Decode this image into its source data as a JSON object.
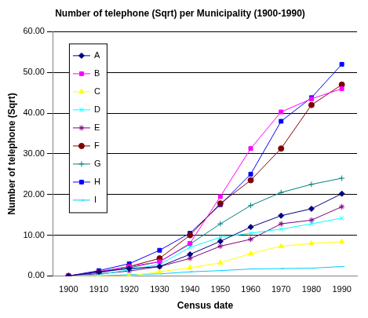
{
  "chart_data": {
    "type": "line",
    "title": "Number of telephone (Sqrt) per Municipality (1900-1990)",
    "x_label": "Census date",
    "y_label": "Number of telephone (Sqrt)",
    "categories": [
      "1900",
      "1910",
      "1920",
      "1930",
      "1940",
      "1950",
      "1960",
      "1970",
      "1980",
      "1990"
    ],
    "series": [
      {
        "name": "A",
        "color": "#000080",
        "marker": "diamond",
        "values": [
          0,
          1.0,
          1.8,
          2.3,
          5.3,
          8.5,
          12.0,
          14.8,
          16.5,
          20.2
        ]
      },
      {
        "name": "B",
        "color": "#ff00ff",
        "marker": "square",
        "values": [
          0,
          1.0,
          2.3,
          3.5,
          8.0,
          19.5,
          31.3,
          40.3,
          43.5,
          46.0
        ]
      },
      {
        "name": "C",
        "color": "#ffff00",
        "marker": "triangle",
        "values": [
          0,
          0,
          0,
          1.0,
          2.0,
          3.2,
          5.5,
          7.3,
          8.0,
          8.4
        ]
      },
      {
        "name": "D",
        "color": "#00ffff",
        "marker": "x",
        "values": [
          0,
          0.3,
          1.5,
          2.8,
          7.0,
          9.5,
          10.5,
          11.5,
          12.8,
          14.2
        ]
      },
      {
        "name": "E",
        "color": "#800080",
        "marker": "star",
        "values": [
          0,
          0.5,
          1.2,
          2.3,
          4.3,
          7.3,
          9.0,
          12.8,
          13.7,
          17.0
        ]
      },
      {
        "name": "F",
        "color": "#800000",
        "marker": "circle",
        "values": [
          0,
          1.0,
          2.3,
          4.3,
          10.0,
          17.8,
          23.5,
          31.3,
          42.0,
          47.0
        ]
      },
      {
        "name": "G",
        "color": "#008080",
        "marker": "plus",
        "values": [
          0,
          0.8,
          2.0,
          3.5,
          7.8,
          12.8,
          17.3,
          20.5,
          22.5,
          24.0
        ]
      },
      {
        "name": "H",
        "color": "#0000ff",
        "marker": "square",
        "values": [
          0,
          1.3,
          3.0,
          6.3,
          10.5,
          17.5,
          25.0,
          38.0,
          43.8,
          52.0
        ]
      },
      {
        "name": "I",
        "color": "#00ccff",
        "marker": "dash",
        "values": [
          0,
          0,
          0.3,
          0.5,
          1.0,
          1.3,
          1.7,
          1.8,
          1.9,
          2.3
        ]
      }
    ],
    "ylim": [
      0,
      60
    ],
    "yticks": [
      {
        "value": 0,
        "label": "0.00"
      },
      {
        "value": 10,
        "label": "10.00"
      },
      {
        "value": 20,
        "label": "20.00"
      },
      {
        "value": 30,
        "label": "30.00"
      },
      {
        "value": 40,
        "label": "40.00"
      },
      {
        "value": 50,
        "label": "50.00"
      },
      {
        "value": 60,
        "label": "60.00"
      }
    ],
    "grid": true,
    "legend": "top-left"
  }
}
